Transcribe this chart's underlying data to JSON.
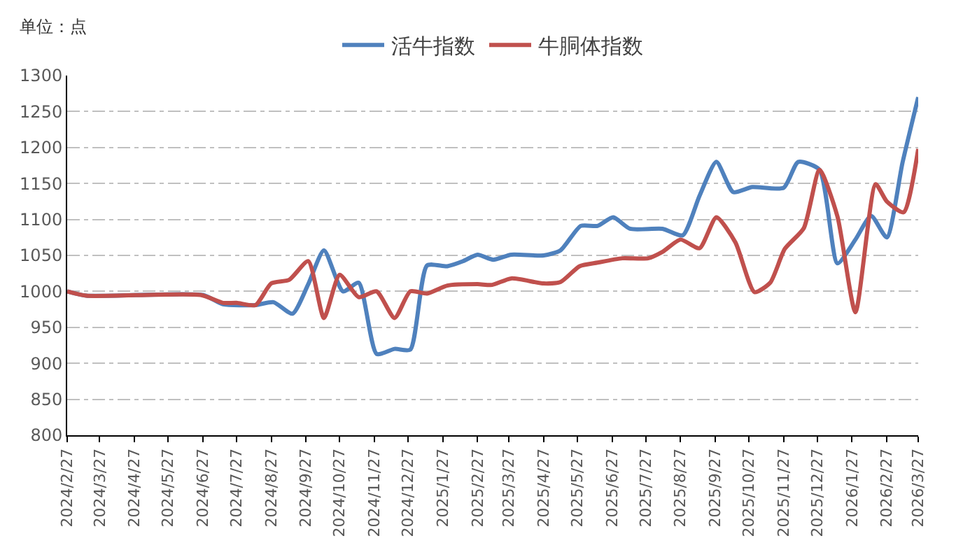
{
  "chart_data": {
    "type": "line",
    "ylabel": "单位：点",
    "xlim": [
      "2024-02-27",
      "2026-03-27"
    ],
    "xticks": [
      {
        "value": "2024-02-27",
        "label": "2024/2/27"
      },
      {
        "value": "2024-03-27",
        "label": "2024/3/27"
      },
      {
        "value": "2024-04-27",
        "label": "2024/4/27"
      },
      {
        "value": "2024-05-27",
        "label": "2024/5/27"
      },
      {
        "value": "2024-06-27",
        "label": "2024/6/27"
      },
      {
        "value": "2024-07-27",
        "label": "2024/7/27"
      },
      {
        "value": "2024-08-27",
        "label": "2024/8/27"
      },
      {
        "value": "2024-09-27",
        "label": "2024/9/27"
      },
      {
        "value": "2024-10-27",
        "label": "2024/10/27"
      },
      {
        "value": "2024-11-27",
        "label": "2024/11/27"
      },
      {
        "value": "2024-12-27",
        "label": "2024/12/27"
      },
      {
        "value": "2025-01-27",
        "label": "2025/1/27"
      },
      {
        "value": "2025-02-27",
        "label": "2025/2/27"
      },
      {
        "value": "2025-03-27",
        "label": "2025/3/27"
      },
      {
        "value": "2025-04-27",
        "label": "2025/4/27"
      },
      {
        "value": "2025-05-27",
        "label": "2025/5/27"
      },
      {
        "value": "2025-06-27",
        "label": "2025/6/27"
      },
      {
        "value": "2025-07-27",
        "label": "2025/7/27"
      },
      {
        "value": "2025-08-27",
        "label": "2025/8/27"
      },
      {
        "value": "2025-09-27",
        "label": "2025/9/27"
      },
      {
        "value": "2025-10-27",
        "label": "2025/10/27"
      },
      {
        "value": "2025-11-27",
        "label": "2025/11/27"
      },
      {
        "value": "2025-12-27",
        "label": "2025/12/27"
      },
      {
        "value": "2026-01-27",
        "label": "2026/1/27"
      },
      {
        "value": "2026-02-27",
        "label": "2026/2/27"
      },
      {
        "value": "2026-03-27",
        "label": "2026/3/27"
      }
    ],
    "ylim": [
      800,
      1300
    ],
    "yticks": [
      800,
      850,
      900,
      950,
      1000,
      1050,
      1100,
      1150,
      1200,
      1250,
      1300
    ],
    "grid": "y",
    "legend": "top",
    "marker": "none",
    "line_style": "solid",
    "series": [
      {
        "name": "活牛指数",
        "color": "#4f81bd",
        "x": [
          "2024-02-27",
          "2024-03-15",
          "2024-06-27",
          "2024-07-15",
          "2024-08-13",
          "2024-08-29",
          "2024-09-15",
          "2024-09-29",
          "2024-10-13",
          "2024-10-30",
          "2024-11-13",
          "2024-11-29",
          "2024-12-15",
          "2024-12-29",
          "2025-01-13",
          "2025-01-31",
          "2025-02-14",
          "2025-02-27",
          "2025-03-13",
          "2025-03-29",
          "2025-04-27",
          "2025-05-12",
          "2025-05-30",
          "2025-06-14",
          "2025-06-28",
          "2025-07-13",
          "2025-08-11",
          "2025-08-29",
          "2025-09-13",
          "2025-09-28",
          "2025-10-13",
          "2025-10-30",
          "2025-11-27",
          "2025-12-10",
          "2025-12-29",
          "2026-01-14",
          "2026-01-30",
          "2026-02-13",
          "2026-02-27",
          "2026-03-13",
          "2026-03-27"
        ],
        "values": [
          1000,
          994,
          995,
          982,
          981,
          985,
          969,
          1010,
          1057,
          1000,
          1012,
          913,
          920,
          919,
          1036,
          1035,
          1042,
          1051,
          1044,
          1051,
          1050,
          1057,
          1091,
          1091,
          1103,
          1087,
          1087,
          1078,
          1133,
          1180,
          1138,
          1145,
          1144,
          1180,
          1169,
          1039,
          1072,
          1105,
          1075,
          1179,
          1270
        ]
      },
      {
        "name": "牛胴体指数",
        "color": "#c0504d",
        "x": [
          "2024-02-27",
          "2024-03-15",
          "2024-06-25",
          "2024-07-15",
          "2024-07-27",
          "2024-08-13",
          "2024-08-27",
          "2024-09-12",
          "2024-09-29",
          "2024-10-13",
          "2024-10-27",
          "2024-11-13",
          "2024-11-29",
          "2024-12-15",
          "2024-12-29",
          "2025-01-13",
          "2025-01-31",
          "2025-02-27",
          "2025-03-12",
          "2025-03-29",
          "2025-04-27",
          "2025-05-12",
          "2025-05-29",
          "2025-06-14",
          "2025-07-06",
          "2025-07-29",
          "2025-08-11",
          "2025-08-27",
          "2025-09-13",
          "2025-09-28",
          "2025-10-15",
          "2025-11-01",
          "2025-11-15",
          "2025-11-28",
          "2025-12-15",
          "2025-12-29",
          "2026-01-14",
          "2026-01-30",
          "2026-02-17",
          "2026-02-27",
          "2026-03-14",
          "2026-03-27"
        ],
        "values": [
          1000,
          994,
          995,
          984,
          984,
          981,
          1011,
          1016,
          1042,
          963,
          1023,
          992,
          1000,
          963,
          1000,
          997,
          1008,
          1010,
          1009,
          1018,
          1011,
          1013,
          1035,
          1040,
          1046,
          1046,
          1055,
          1072,
          1060,
          1103,
          1068,
          999,
          1012,
          1059,
          1088,
          1169,
          1104,
          971,
          1149,
          1125,
          1110,
          1198
        ]
      }
    ]
  }
}
